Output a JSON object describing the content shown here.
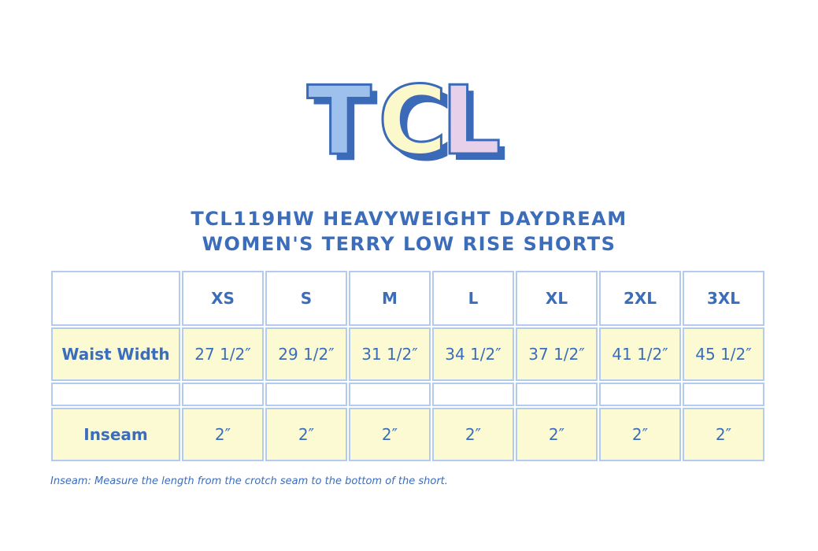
{
  "logo": {
    "letters": [
      "T",
      "C",
      "L"
    ]
  },
  "title": [
    "TCL119HW HEAVYWEIGHT DAYDREAM",
    "WOMEN'S TERRY LOW RISE SHORTS"
  ],
  "table": {
    "columns": [
      "XS",
      "S",
      "M",
      "L",
      "XL",
      "2XL",
      "3XL"
    ],
    "rows": [
      {
        "label": "Waist Width",
        "values": [
          "27 1/2″",
          "29 1/2″",
          "31 1/2″",
          "34 1/2″",
          "37 1/2″",
          "41 1/2″",
          "45 1/2″"
        ]
      },
      {
        "label": "Inseam",
        "values": [
          "2″",
          "2″",
          "2″",
          "2″",
          "2″",
          "2″",
          "2″"
        ]
      }
    ]
  },
  "note": "Inseam: Measure the length from the crotch seam to the bottom of the short."
}
